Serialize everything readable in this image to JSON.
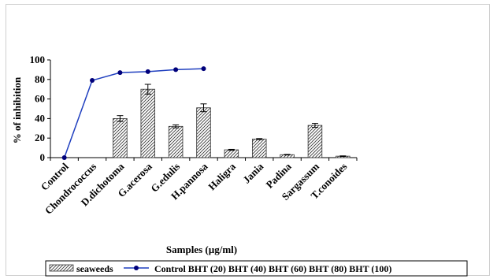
{
  "chart_data": {
    "type": "bar",
    "categories": [
      "Control",
      "Chondrococcus",
      "D.dichotoma",
      "G.acerosa",
      "G.edulis",
      "H.pannosa",
      "Haligra",
      "Jania",
      "Padina",
      "Sargassum",
      "T.conoides"
    ],
    "series": [
      {
        "name": "seaweeds",
        "kind": "bar",
        "values": [
          null,
          null,
          40,
          70,
          32,
          51,
          8,
          19,
          3,
          33,
          1.5
        ],
        "errors": [
          null,
          null,
          3,
          5,
          1.5,
          4,
          0.5,
          0.5,
          0.3,
          2,
          0.3
        ]
      },
      {
        "name": "Control BHT (20) BHT (40) BHT (60) BHT (80) BHT (100)",
        "kind": "line",
        "marker_color": "#00007a",
        "line_color": "#1f3fbf",
        "values": [
          0,
          79,
          87,
          88,
          90,
          91,
          null,
          null,
          null,
          null,
          null
        ]
      }
    ],
    "xlabel": "Samples (µg/ml)",
    "ylabel": "% of inhibition",
    "ylim": [
      0,
      100
    ],
    "yticks": [
      0,
      20,
      40,
      60,
      80,
      100
    ],
    "legend_position": "bottom",
    "grid": false
  }
}
